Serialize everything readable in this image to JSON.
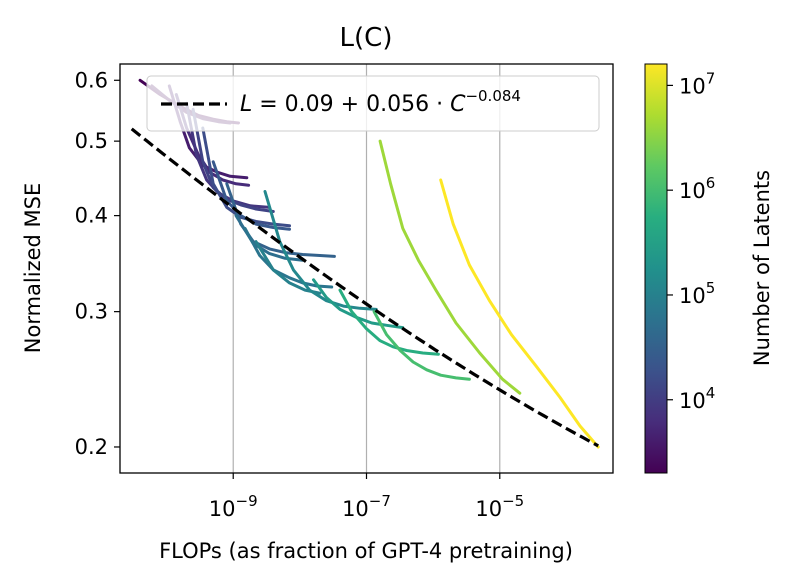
{
  "chart_data": {
    "type": "line",
    "title": "L(C)",
    "xlabel": "FLOPs (as fraction of GPT-4 pretraining)",
    "ylabel": "Normalized MSE",
    "x_scale": "log",
    "y_scale": "log",
    "xlim": [
      2e-11,
      0.0005
    ],
    "ylim": [
      0.185,
      0.63
    ],
    "x_ticks": [
      {
        "value": 1e-09,
        "mant": "10",
        "exp": "−9"
      },
      {
        "value": 1e-07,
        "mant": "10",
        "exp": "−7"
      },
      {
        "value": 1e-05,
        "mant": "10",
        "exp": "−5"
      }
    ],
    "y_ticks": [
      {
        "value": 0.6,
        "label": "0.6"
      },
      {
        "value": 0.5,
        "label": "0.5"
      },
      {
        "value": 0.4,
        "label": "0.4"
      },
      {
        "value": 0.3,
        "label": "0.3"
      },
      {
        "value": 0.2,
        "label": "0.2"
      }
    ],
    "grid": "vertical",
    "legend": {
      "placement": "top-left",
      "label": "L = 0.09 + 0.056 · C^−0.084",
      "style": "dashed-black"
    },
    "fit": {
      "a": 0.09,
      "b": 0.056,
      "alpha": 0.084,
      "x_range": [
        3e-11,
        0.0003
      ]
    },
    "colorbar": {
      "label": "Number of Latents",
      "scale": "log",
      "range": [
        2000,
        16000000
      ],
      "colormap": "viridis",
      "ticks": [
        {
          "value": 10000,
          "mant": "10",
          "exp": "4"
        },
        {
          "value": 100000,
          "mant": "10",
          "exp": "5"
        },
        {
          "value": 1000000,
          "mant": "10",
          "exp": "6"
        },
        {
          "value": 10000000,
          "mant": "10",
          "exp": "7"
        }
      ]
    },
    "series": [
      {
        "latents": 2048,
        "x": [
          4e-11,
          8e-11,
          1.6e-10,
          3e-10,
          5e-10,
          8e-10,
          1.2e-09
        ],
        "y": [
          0.6,
          0.575,
          0.555,
          0.54,
          0.534,
          0.53,
          0.528
        ]
      },
      {
        "latents": 3000,
        "x": [
          6e-11,
          1.1e-10,
          2e-10,
          3.5e-10,
          6e-10,
          9e-10
        ],
        "y": [
          0.59,
          0.565,
          0.545,
          0.535,
          0.53,
          0.528
        ]
      },
      {
        "latents": 4096,
        "x": [
          1.1e-10,
          1.6e-10,
          2.2e-10,
          3.5e-10,
          6e-10,
          9e-10,
          1.6e-09
        ],
        "y": [
          0.59,
          0.53,
          0.49,
          0.465,
          0.455,
          0.45,
          0.448
        ]
      },
      {
        "latents": 6000,
        "x": [
          1.4e-10,
          2e-10,
          3e-10,
          4.5e-10,
          7e-10,
          1.1e-09,
          1.7e-09
        ],
        "y": [
          0.575,
          0.52,
          0.48,
          0.455,
          0.445,
          0.44,
          0.438
        ]
      },
      {
        "latents": 8192,
        "x": [
          2e-10,
          2.8e-10,
          4e-10,
          6e-10,
          1e-09,
          1.8e-09,
          3.5e-09
        ],
        "y": [
          0.56,
          0.48,
          0.445,
          0.428,
          0.418,
          0.412,
          0.41
        ]
      },
      {
        "latents": 12000,
        "x": [
          2.5e-10,
          3.5e-10,
          5e-10,
          8e-10,
          1.3e-09,
          2.2e-09,
          4e-09
        ],
        "y": [
          0.55,
          0.47,
          0.435,
          0.42,
          0.413,
          0.408,
          0.405
        ]
      },
      {
        "latents": 16384,
        "x": [
          3.5e-10,
          5e-10,
          8e-10,
          1.3e-09,
          2.2e-09,
          4e-09,
          7e-09
        ],
        "y": [
          0.52,
          0.44,
          0.41,
          0.398,
          0.393,
          0.39,
          0.388
        ]
      },
      {
        "latents": 24000,
        "x": [
          5e-10,
          8e-10,
          1.3e-09,
          2.2e-09,
          4e-09,
          7e-09
        ],
        "y": [
          0.47,
          0.418,
          0.4,
          0.39,
          0.386,
          0.384
        ]
      },
      {
        "latents": 32768,
        "x": [
          8e-10,
          1.3e-09,
          2e-09,
          3.5e-09,
          6e-09,
          1.1e-08,
          2e-08,
          3.3e-08
        ],
        "y": [
          0.44,
          0.39,
          0.37,
          0.362,
          0.358,
          0.356,
          0.355,
          0.354
        ]
      },
      {
        "latents": 50000,
        "x": [
          1.1e-09,
          2e-09,
          3.5e-09,
          6e-09,
          1.1e-08
        ],
        "y": [
          0.4,
          0.368,
          0.357,
          0.352,
          0.35
        ]
      },
      {
        "latents": 65536,
        "x": [
          1.5e-09,
          2.5e-09,
          4e-09,
          7e-09,
          1.1e-08,
          1.8e-08,
          3e-08
        ],
        "y": [
          0.385,
          0.355,
          0.34,
          0.332,
          0.327,
          0.324,
          0.323
        ]
      },
      {
        "latents": 100000,
        "x": [
          2.2e-09,
          4e-09,
          7e-09,
          1.2e-08,
          2e-08
        ],
        "y": [
          0.37,
          0.34,
          0.327,
          0.32,
          0.317
        ]
      },
      {
        "latents": 131072,
        "x": [
          3e-09,
          5e-09,
          8e-09,
          1.4e-08,
          2.5e-08,
          4.5e-08,
          8e-08,
          1.4e-07
        ],
        "y": [
          0.43,
          0.37,
          0.34,
          0.32,
          0.31,
          0.305,
          0.303,
          0.302
        ]
      },
      {
        "latents": 262144,
        "x": [
          1.6e-08,
          2.5e-08,
          4e-08,
          7e-08,
          1.2e-07,
          2e-07,
          3.5e-07
        ],
        "y": [
          0.33,
          0.313,
          0.302,
          0.295,
          0.29,
          0.288,
          0.286
        ]
      },
      {
        "latents": 524288,
        "x": [
          4e-08,
          6e-08,
          1e-07,
          1.6e-07,
          2.5e-07,
          4e-07,
          7e-07,
          1.2e-06
        ],
        "y": [
          0.32,
          0.3,
          0.285,
          0.275,
          0.27,
          0.267,
          0.265,
          0.264
        ]
      },
      {
        "latents": 1048576,
        "x": [
          1.3e-07,
          2e-07,
          3.2e-07,
          5e-07,
          8e-07,
          1.3e-06,
          2.2e-06,
          3.5e-06
        ],
        "y": [
          0.3,
          0.28,
          0.267,
          0.258,
          0.252,
          0.248,
          0.246,
          0.245
        ]
      },
      {
        "latents": 4194304,
        "x": [
          1.6e-07,
          2.3e-07,
          3.5e-07,
          6e-07,
          1.1e-06,
          2.2e-06,
          5e-06,
          1.1e-05,
          2e-05
        ],
        "y": [
          0.5,
          0.44,
          0.385,
          0.35,
          0.32,
          0.29,
          0.265,
          0.245,
          0.235
        ]
      },
      {
        "latents": 16777216,
        "x": [
          1.3e-06,
          2e-06,
          3.5e-06,
          7e-06,
          1.5e-05,
          3.5e-05,
          8e-05,
          0.00016,
          0.0003
        ],
        "y": [
          0.445,
          0.39,
          0.345,
          0.31,
          0.28,
          0.255,
          0.232,
          0.213,
          0.2
        ]
      }
    ]
  }
}
